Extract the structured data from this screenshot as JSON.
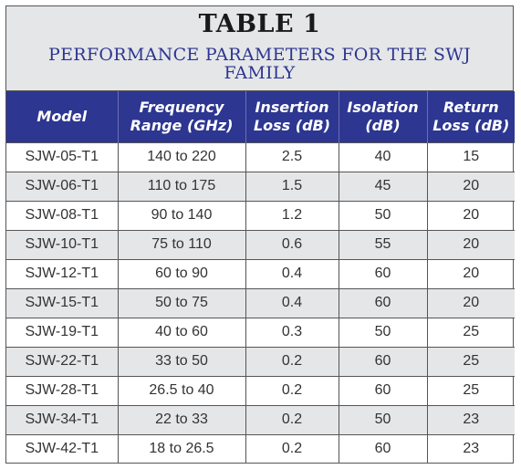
{
  "table": {
    "title": "TABLE 1",
    "subtitle": "PERFORMANCE PARAMETERS FOR THE SWJ FAMILY",
    "headers": [
      [
        "Model",
        ""
      ],
      [
        "Frequency",
        "Range (GHz)"
      ],
      [
        "Insertion",
        "Loss (dB)"
      ],
      [
        "Isolation",
        "(dB)"
      ],
      [
        "Return",
        "Loss (dB)"
      ]
    ],
    "rows": [
      [
        "SJW-05-T1",
        "140 to 220",
        "2.5",
        "40",
        "15"
      ],
      [
        "SJW-06-T1",
        "110 to 175",
        "1.5",
        "45",
        "20"
      ],
      [
        "SJW-08-T1",
        "90 to 140",
        "1.2",
        "50",
        "20"
      ],
      [
        "SJW-10-T1",
        "75 to 110",
        "0.6",
        "55",
        "20"
      ],
      [
        "SJW-12-T1",
        "60 to 90",
        "0.4",
        "60",
        "20"
      ],
      [
        "SJW-15-T1",
        "50 to 75",
        "0.4",
        "60",
        "20"
      ],
      [
        "SJW-19-T1",
        "40 to 60",
        "0.3",
        "50",
        "25"
      ],
      [
        "SJW-22-T1",
        "33 to 50",
        "0.2",
        "60",
        "25"
      ],
      [
        "SJW-28-T1",
        "26.5 to 40",
        "0.2",
        "60",
        "25"
      ],
      [
        "SJW-34-T1",
        "22 to 33",
        "0.2",
        "50",
        "23"
      ],
      [
        "SJW-42-T1",
        "18 to 26.5",
        "0.2",
        "60",
        "23"
      ]
    ]
  },
  "colors": {
    "header_bg": "#2d3691",
    "caption_bg": "#e5e6e8",
    "subtitle_text": "#2d3691",
    "shaded_row_bg": "#e5e6e8"
  }
}
